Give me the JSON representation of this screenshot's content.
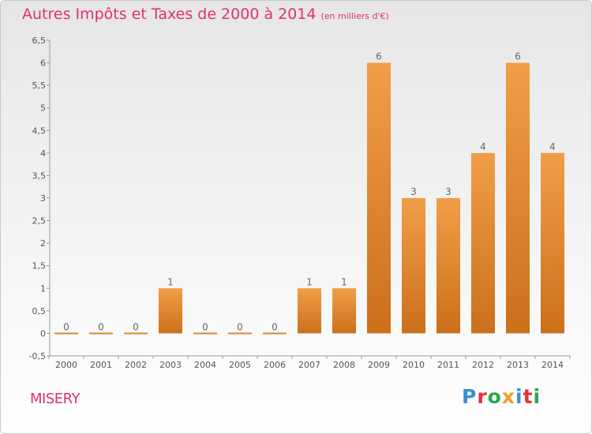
{
  "chart_data": {
    "type": "bar",
    "title": "Autres Impôts et Taxes de 2000 à 2014",
    "unit_label": "(en milliers d'€)",
    "categories": [
      "2000",
      "2001",
      "2002",
      "2003",
      "2004",
      "2005",
      "2006",
      "2007",
      "2008",
      "2009",
      "2010",
      "2011",
      "2012",
      "2013",
      "2014"
    ],
    "values": [
      0,
      0,
      0,
      1,
      0,
      0,
      0,
      1,
      1,
      6,
      3,
      3,
      4,
      6,
      4
    ],
    "data_labels": [
      "0",
      "0",
      "0",
      "1",
      "0",
      "0",
      "0",
      "1",
      "1",
      "6",
      "3",
      "3",
      "4",
      "6",
      "4"
    ],
    "ylim": [
      -0.5,
      6.5
    ],
    "yticks": [
      "-0,5",
      "0",
      "0,5",
      "1",
      "1,5",
      "2",
      "2,5",
      "3",
      "3,5",
      "4",
      "4,5",
      "5",
      "5,5",
      "6",
      "6,5"
    ],
    "grid": false,
    "bar_color": "#f19e48",
    "bar_color_dark": "#cc6f1a"
  },
  "footer": {
    "commune": "MISERY",
    "logo_letters": [
      {
        "char": "P",
        "color": "#3a8fd6"
      },
      {
        "char": "r",
        "color": "#e8303a"
      },
      {
        "char": "o",
        "color": "#2aa84a"
      },
      {
        "char": "x",
        "color": "#f0a020"
      },
      {
        "char": "i",
        "color": "#3a8fd6"
      },
      {
        "char": "t",
        "color": "#e8303a"
      },
      {
        "char": "i",
        "color": "#2aa84a"
      }
    ]
  }
}
